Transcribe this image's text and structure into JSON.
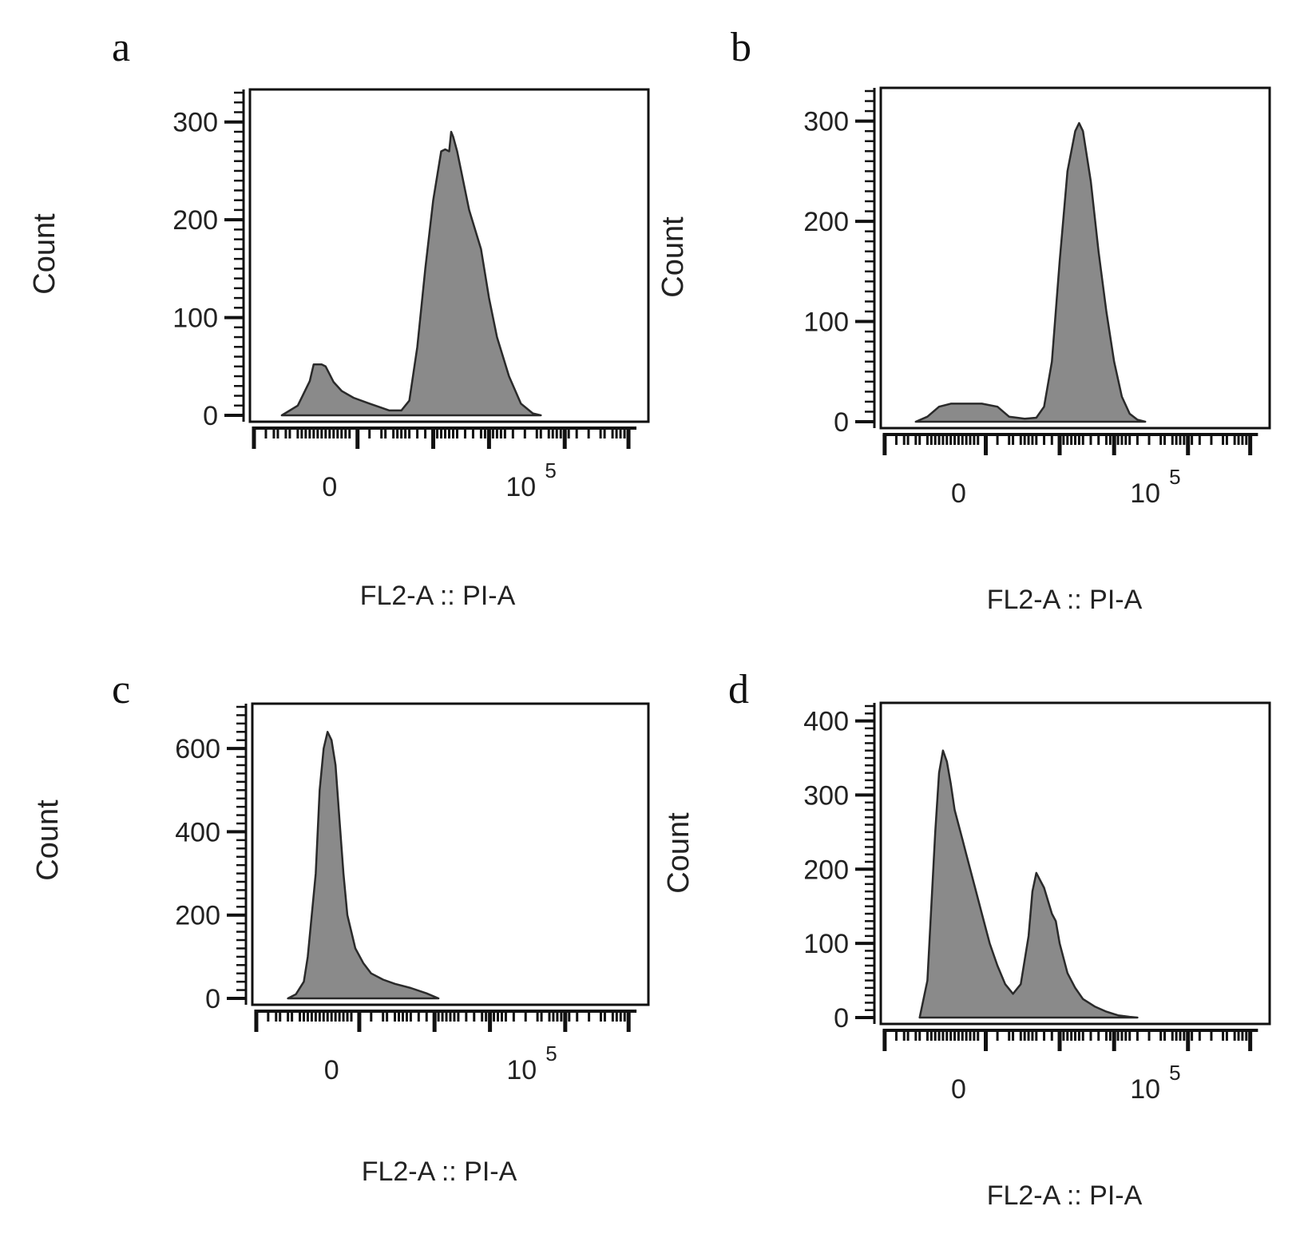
{
  "colors": {
    "fill": "#8a8a8a",
    "stroke": "#2a2a2a",
    "frame": "#111111",
    "background": "#ffffff"
  },
  "chart_data": [
    {
      "panel": "a",
      "type": "area",
      "title": "",
      "xlabel": "FL2-A :: PI-A",
      "ylabel": "Count",
      "ylim": [
        0,
        330
      ],
      "yticks": [
        0,
        100,
        200,
        300
      ],
      "ytick_labels": [
        "0",
        "100",
        "200",
        "300"
      ],
      "xtick_labels": [
        {
          "pos": 0.2,
          "base": "0",
          "exp": ""
        },
        {
          "pos": 0.68,
          "base": "10",
          "exp": "5"
        }
      ],
      "x": [
        0.08,
        0.12,
        0.15,
        0.16,
        0.18,
        0.19,
        0.2,
        0.21,
        0.23,
        0.26,
        0.3,
        0.35,
        0.38,
        0.4,
        0.42,
        0.44,
        0.46,
        0.48,
        0.49,
        0.5,
        0.505,
        0.51,
        0.52,
        0.53,
        0.55,
        0.58,
        0.6,
        0.62,
        0.65,
        0.68,
        0.71,
        0.73
      ],
      "y": [
        0,
        10,
        35,
        52,
        52,
        50,
        42,
        34,
        25,
        18,
        12,
        5,
        5,
        15,
        70,
        150,
        220,
        270,
        272,
        270,
        290,
        285,
        270,
        250,
        210,
        170,
        120,
        80,
        40,
        12,
        2,
        0
      ]
    },
    {
      "panel": "b",
      "type": "area",
      "title": "",
      "xlabel": "FL2-A :: PI-A",
      "ylabel": "Count",
      "ylim": [
        0,
        330
      ],
      "yticks": [
        0,
        100,
        200,
        300
      ],
      "ytick_labels": [
        "0",
        "100",
        "200",
        "300"
      ],
      "xtick_labels": [
        {
          "pos": 0.2,
          "base": "0",
          "exp": ""
        },
        {
          "pos": 0.68,
          "base": "10",
          "exp": "5"
        }
      ],
      "x": [
        0.09,
        0.12,
        0.15,
        0.18,
        0.22,
        0.26,
        0.3,
        0.33,
        0.37,
        0.4,
        0.42,
        0.44,
        0.46,
        0.48,
        0.5,
        0.51,
        0.52,
        0.54,
        0.56,
        0.58,
        0.6,
        0.62,
        0.64,
        0.66,
        0.68
      ],
      "y": [
        0,
        5,
        15,
        18,
        18,
        18,
        15,
        5,
        3,
        4,
        15,
        60,
        160,
        250,
        290,
        298,
        290,
        240,
        170,
        110,
        60,
        25,
        8,
        2,
        0
      ]
    },
    {
      "panel": "c",
      "type": "area",
      "title": "",
      "xlabel": "FL2-A :: PI-A",
      "ylabel": "Count",
      "ylim": [
        0,
        700
      ],
      "yticks": [
        0,
        200,
        400,
        600
      ],
      "ytick_labels": [
        "0",
        "200",
        "400",
        "600"
      ],
      "xtick_labels": [
        {
          "pos": 0.2,
          "base": "0",
          "exp": ""
        },
        {
          "pos": 0.68,
          "base": "10",
          "exp": "5"
        }
      ],
      "x": [
        0.09,
        0.11,
        0.13,
        0.14,
        0.16,
        0.17,
        0.18,
        0.19,
        0.2,
        0.21,
        0.22,
        0.23,
        0.24,
        0.26,
        0.28,
        0.3,
        0.33,
        0.36,
        0.4,
        0.44,
        0.47
      ],
      "y": [
        0,
        10,
        40,
        100,
        300,
        500,
        600,
        640,
        620,
        560,
        430,
        300,
        200,
        120,
        85,
        60,
        45,
        35,
        25,
        12,
        0
      ]
    },
    {
      "panel": "d",
      "type": "area",
      "title": "",
      "xlabel": "FL2-A :: PI-A",
      "ylabel": "Count",
      "ylim": [
        0,
        420
      ],
      "yticks": [
        0,
        100,
        200,
        300,
        400
      ],
      "ytick_labels": [
        "0",
        "100",
        "200",
        "300",
        "400"
      ],
      "xtick_labels": [
        {
          "pos": 0.2,
          "base": "0",
          "exp": ""
        },
        {
          "pos": 0.68,
          "base": "10",
          "exp": "5"
        }
      ],
      "x": [
        0.1,
        0.12,
        0.14,
        0.15,
        0.16,
        0.17,
        0.18,
        0.19,
        0.2,
        0.21,
        0.22,
        0.24,
        0.26,
        0.28,
        0.3,
        0.32,
        0.34,
        0.36,
        0.38,
        0.39,
        0.4,
        0.42,
        0.44,
        0.45,
        0.46,
        0.47,
        0.48,
        0.5,
        0.52,
        0.55,
        0.58,
        0.61,
        0.64,
        0.66
      ],
      "y": [
        0,
        50,
        250,
        330,
        360,
        345,
        315,
        280,
        260,
        240,
        220,
        180,
        140,
        100,
        70,
        45,
        32,
        45,
        110,
        170,
        195,
        175,
        140,
        130,
        100,
        80,
        60,
        40,
        25,
        15,
        8,
        3,
        1,
        0
      ]
    }
  ],
  "panels": [
    {
      "letter": "a",
      "xlabel": "FL2-A :: PI-A",
      "ylabel": "Count"
    },
    {
      "letter": "b",
      "xlabel": "FL2-A :: PI-A",
      "ylabel": "Count"
    },
    {
      "letter": "c",
      "xlabel": "FL2-A :: PI-A",
      "ylabel": "Count"
    },
    {
      "letter": "d",
      "xlabel": "FL2-A :: PI-A",
      "ylabel": "Count"
    }
  ]
}
